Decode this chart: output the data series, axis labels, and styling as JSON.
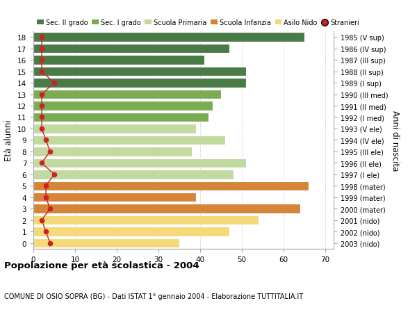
{
  "ages": [
    18,
    17,
    16,
    15,
    14,
    13,
    12,
    11,
    10,
    9,
    8,
    7,
    6,
    5,
    4,
    3,
    2,
    1,
    0
  ],
  "bar_values": [
    65,
    47,
    41,
    51,
    51,
    45,
    43,
    42,
    39,
    46,
    38,
    51,
    48,
    66,
    39,
    64,
    54,
    47,
    35
  ],
  "stranieri_values": [
    2,
    2,
    2,
    2,
    5,
    2,
    2,
    2,
    2,
    3,
    4,
    2,
    5,
    3,
    3,
    4,
    2,
    3,
    4
  ],
  "right_labels": [
    "1985 (V sup)",
    "1986 (IV sup)",
    "1987 (III sup)",
    "1988 (II sup)",
    "1989 (I sup)",
    "1990 (III med)",
    "1991 (II med)",
    "1992 (I med)",
    "1993 (V ele)",
    "1994 (IV ele)",
    "1995 (III ele)",
    "1996 (II ele)",
    "1997 (I ele)",
    "1998 (mater)",
    "1999 (mater)",
    "2000 (mater)",
    "2001 (nido)",
    "2002 (nido)",
    "2003 (nido)"
  ],
  "bar_colors": [
    "#4a7a46",
    "#4a7a46",
    "#4a7a46",
    "#4a7a46",
    "#4a7a46",
    "#7aad52",
    "#7aad52",
    "#7aad52",
    "#c2d9a0",
    "#c2d9a0",
    "#c2d9a0",
    "#c2d9a0",
    "#c2d9a0",
    "#d4853a",
    "#d4853a",
    "#d4853a",
    "#f5d878",
    "#f5d878",
    "#f5d878"
  ],
  "legend_labels": [
    "Sec. II grado",
    "Sec. I grado",
    "Scuola Primaria",
    "Scuola Infanzia",
    "Asilo Nido",
    "Stranieri"
  ],
  "legend_colors": [
    "#4a7a46",
    "#7aad52",
    "#c2d9a0",
    "#d4853a",
    "#f5d878",
    "#cc2222"
  ],
  "stranieri_color": "#cc2222",
  "title": "Popolazione per età scolastica - 2004",
  "subtitle": "COMUNE DI OSIO SOPRA (BG) - Dati ISTAT 1° gennaio 2004 - Elaborazione TUTTITALIA.IT",
  "ylabel": "Età alunni",
  "right_ylabel": "Anni di nascita",
  "xlim": [
    0,
    72
  ],
  "xticks": [
    0,
    10,
    20,
    30,
    40,
    50,
    60,
    70
  ],
  "background_color": "#ffffff",
  "grid_color": "#cccccc"
}
